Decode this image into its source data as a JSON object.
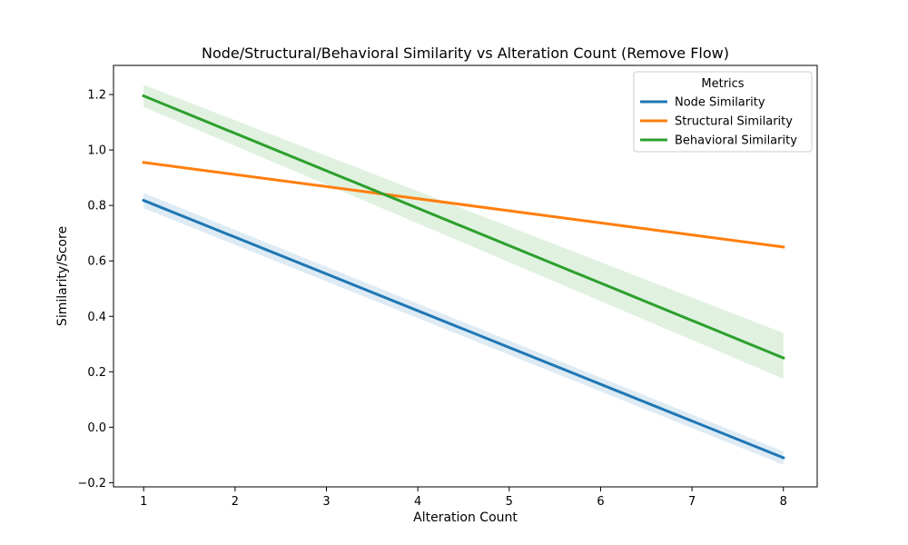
{
  "chart_data": {
    "type": "line",
    "title": "Node/Structural/Behavioral Similarity vs Alteration Count (Remove Flow)",
    "xlabel": "Alteration Count",
    "ylabel": "Similarity/Score",
    "xlim": [
      0.67,
      8.37
    ],
    "ylim": [
      -0.215,
      1.305
    ],
    "x_ticks": [
      1,
      2,
      3,
      4,
      5,
      6,
      7,
      8
    ],
    "y_ticks": [
      -0.2,
      0.0,
      0.2,
      0.4,
      0.6,
      0.8,
      1.0,
      1.2
    ],
    "y_tick_labels": [
      "−0.2",
      "0.0",
      "0.2",
      "0.4",
      "0.6",
      "0.8",
      "1.0",
      "1.2"
    ],
    "grid": false,
    "legend": {
      "title": "Metrics",
      "position": "top-right"
    },
    "series": [
      {
        "name": "Node Similarity",
        "color": "#1f77b4",
        "x": [
          1,
          8
        ],
        "y": [
          0.818,
          -0.11
        ],
        "ci_lower": [
          0.79,
          -0.135
        ],
        "ci_upper": [
          0.845,
          -0.087
        ]
      },
      {
        "name": "Structural Similarity",
        "color": "#ff7f0e",
        "x": [
          1,
          8
        ],
        "y": [
          0.955,
          0.65
        ],
        "ci_lower": [
          0.95,
          0.645
        ],
        "ci_upper": [
          0.96,
          0.655
        ]
      },
      {
        "name": "Behavioral Similarity",
        "color": "#2ca02c",
        "x": [
          1,
          8
        ],
        "y": [
          1.195,
          0.25
        ],
        "ci_lower": [
          1.155,
          0.175
        ],
        "ci_upper": [
          1.235,
          0.34
        ]
      }
    ]
  }
}
